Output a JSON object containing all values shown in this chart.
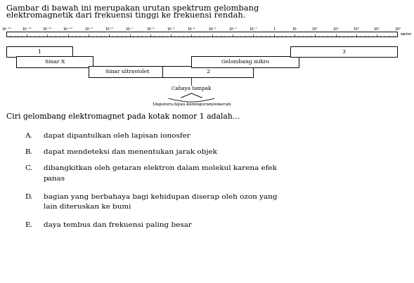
{
  "title_line1": "Gambar di bawah ini merupakan urutan spektrum gelombang",
  "title_line2": "elektromagnetik dari frekuensi tinggi ke frekuensi rendah.",
  "scale_labels": [
    "10⁻¹³",
    "10⁻¹²",
    "10⁻¹¹",
    "10⁻¹⁰",
    "10⁻⁹",
    "10⁻⁸",
    "10⁻⁷",
    "10⁻⁶",
    "10⁻⁵",
    "10⁻⁴",
    "10⁻³",
    "10⁻²",
    "10⁻¹",
    "1",
    "10",
    "10²",
    "10³",
    "10⁴",
    "10⁵",
    "10⁶"
  ],
  "question": "Ciri gelombang elektromagnet pada kotak nomor 1 adalah…",
  "options_letters": [
    "A.",
    "B.",
    "C.",
    "D.",
    "E."
  ],
  "options_texts": [
    "dapat dipantulkan oleh lapisan ionosfer",
    "dapat mendeteksi dan menentukan jarak objek",
    "dibangkitkan oleh getaran elektron dalam molekul karena efek",
    "bagian yang berbahaya bagi kehidupan diserap oleh ozon yang",
    "daya tembus dan frekuensi paling besar"
  ],
  "options_line2": [
    "",
    "",
    "panas",
    "lain diteruskan ke bumi",
    ""
  ],
  "bg_color": "#ffffff",
  "text_color": "#000000"
}
